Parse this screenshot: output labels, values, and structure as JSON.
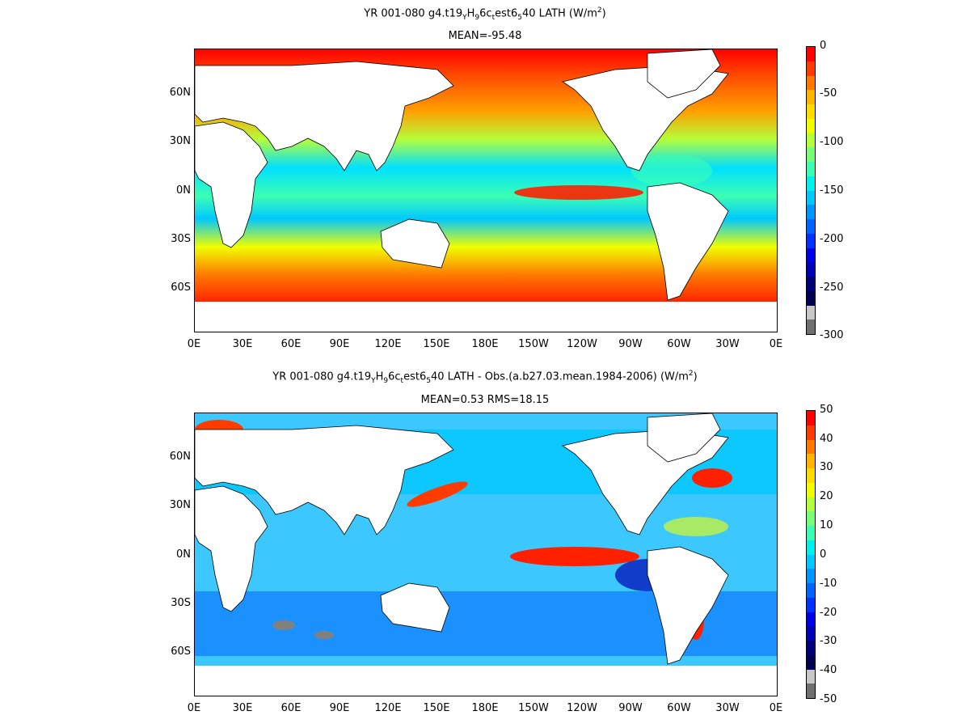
{
  "panel_top": {
    "title_pre": "YR 001-080 g4.t19",
    "title_sub1": "Y",
    "title_mid1": "H",
    "title_sub2": "9",
    "title_mid2": "6c",
    "title_sub3": "t",
    "title_mid3": "est6",
    "title_sub4": "5",
    "title_post": "40  LATH (W/m",
    "title_sup": "2",
    "title_end": ")",
    "subtitle": "MEAN=-95.48",
    "colorbar_labels": [
      "0",
      "-50",
      "-100",
      "-150",
      "-200",
      "-250",
      "-300"
    ],
    "colorbar_colors": [
      "#ff0000",
      "#ff3c00",
      "#ff7800",
      "#ffb400",
      "#ffdc00",
      "#f0ff00",
      "#b4ff3c",
      "#78ff78",
      "#3cffb4",
      "#00f0f0",
      "#00c8ff",
      "#0096ff",
      "#0064ff",
      "#0032ff",
      "#0000e6",
      "#0000b4",
      "#000078",
      "#000050",
      "#c8c8c8",
      "#707070"
    ]
  },
  "panel_bottom": {
    "title_pre": "YR 001-080 g4.t19",
    "title_sub1": "Y",
    "title_mid1": "H",
    "title_sub2": "9",
    "title_mid2": "6c",
    "title_sub3": "t",
    "title_mid3": "est6",
    "title_sub4": "5",
    "title_post": "40 LATH - Obs.(a.b27.03.mean.1984-2006) (W/m",
    "title_sup": "2",
    "title_end": ")",
    "subtitle": "MEAN=0.53 RMS=18.15",
    "colorbar_labels": [
      "50",
      "40",
      "30",
      "20",
      "10",
      "0",
      "-10",
      "-20",
      "-30",
      "-40",
      "-50"
    ],
    "colorbar_colors": [
      "#ff0000",
      "#ff3c00",
      "#ff7800",
      "#ffb400",
      "#ffdc00",
      "#f0ff00",
      "#b4ff3c",
      "#78ff78",
      "#3cffb4",
      "#00f0f0",
      "#00c8ff",
      "#0096ff",
      "#0064ff",
      "#0032ff",
      "#0000e6",
      "#0000b4",
      "#000078",
      "#000050",
      "#c8c8c8",
      "#707070"
    ]
  },
  "lat_labels": [
    "60N",
    "30N",
    "0N",
    "30S",
    "60S"
  ],
  "lon_labels": [
    "0E",
    "30E",
    "60E",
    "90E",
    "120E",
    "150E",
    "180E",
    "150W",
    "120W",
    "90W",
    "60W",
    "30W",
    "0E"
  ]
}
